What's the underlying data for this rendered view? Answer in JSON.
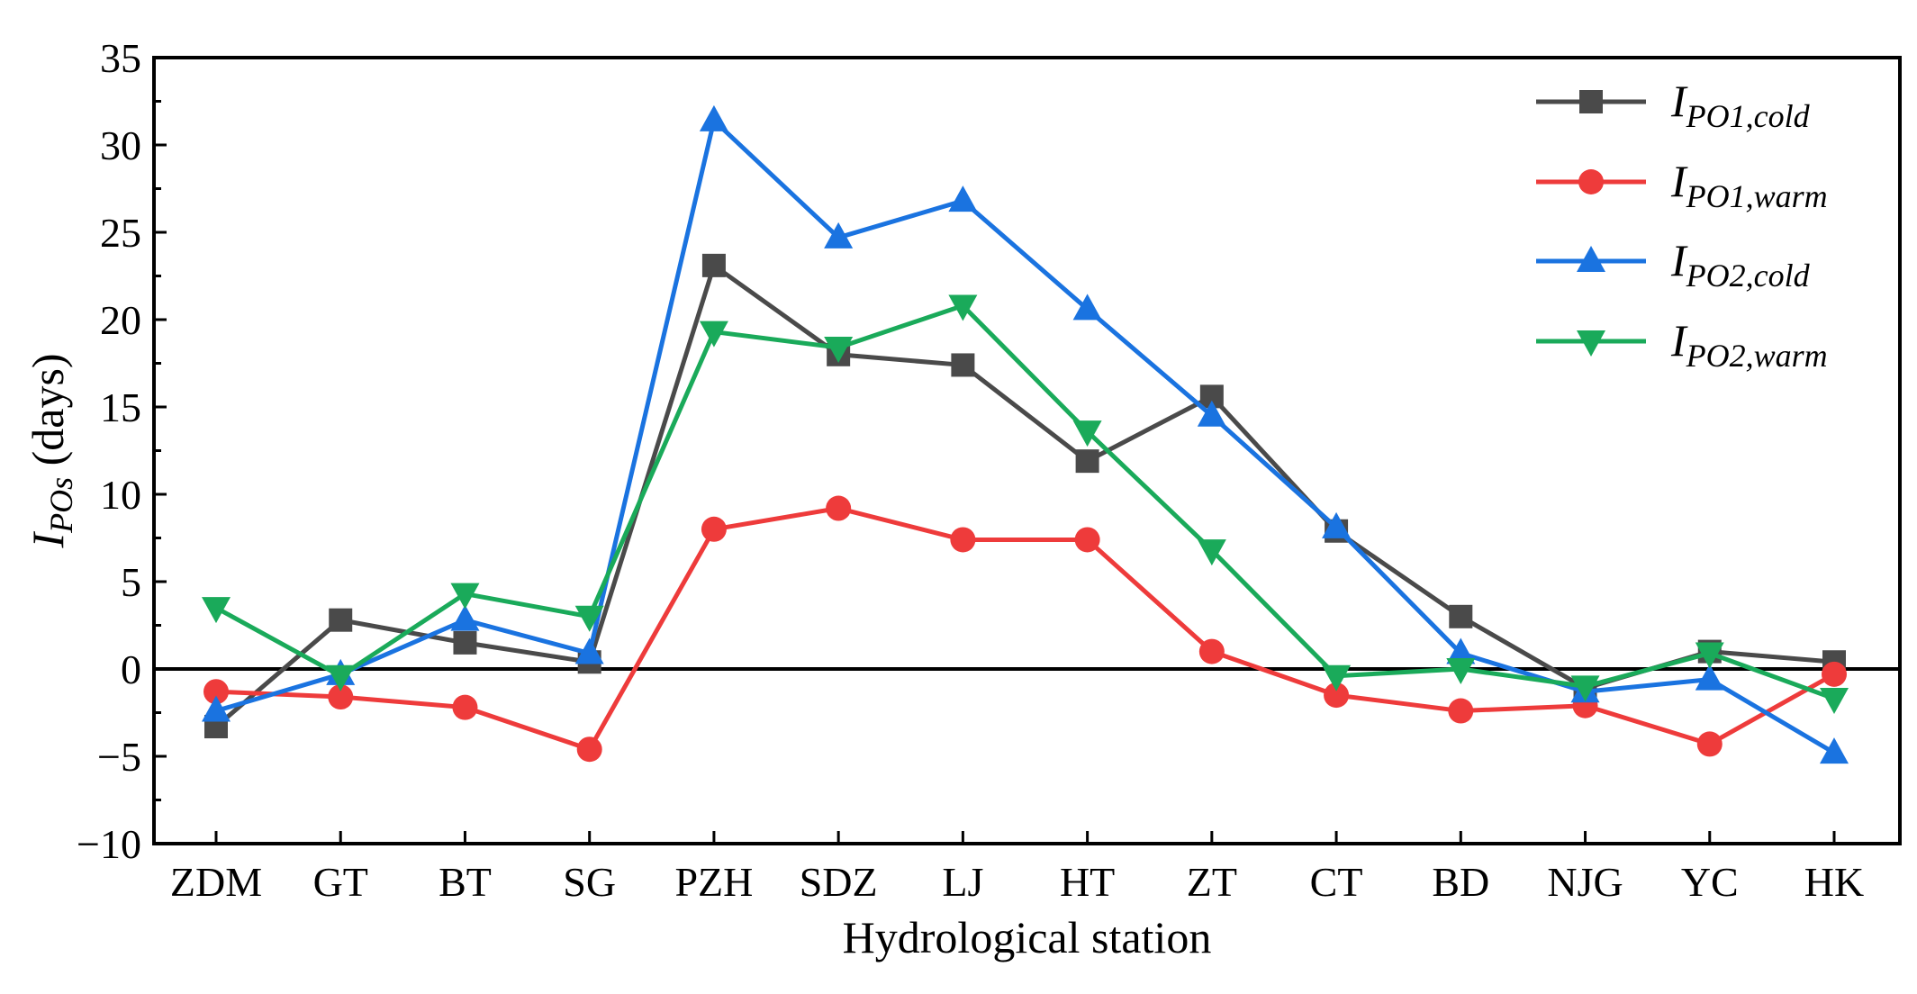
{
  "chart_data": {
    "type": "line",
    "title": "",
    "xlabel": "Hydrological station",
    "ylabel": {
      "main": "I",
      "sub": "POs",
      "unit": " (days)"
    },
    "categories": [
      "ZDM",
      "GT",
      "BT",
      "SG",
      "PZH",
      "SDZ",
      "LJ",
      "HT",
      "ZT",
      "CT",
      "BD",
      "NJG",
      "YC",
      "HK"
    ],
    "ylim": [
      -10,
      35
    ],
    "yticks": [
      -10,
      -5,
      0,
      5,
      10,
      15,
      20,
      25,
      30,
      35
    ],
    "ytick_labels": [
      "−10",
      "−5",
      "0",
      "5",
      "10",
      "15",
      "20",
      "25",
      "30",
      "35"
    ],
    "zero_line": true,
    "legend_position": "top-right",
    "series": [
      {
        "name": "I_PO1,cold",
        "label_main": "I",
        "label_sub": "PO1,cold",
        "color": "#4a4a4a",
        "marker": "square",
        "values": [
          -3.3,
          2.8,
          1.5,
          0.4,
          23.1,
          18.0,
          17.4,
          11.9,
          15.6,
          7.9,
          3.0,
          -1.1,
          1.0,
          0.4
        ]
      },
      {
        "name": "I_PO1,warm",
        "label_main": "I",
        "label_sub": "PO1,warm",
        "color": "#ee3b3b",
        "marker": "circle",
        "values": [
          -1.3,
          -1.6,
          -2.2,
          -4.6,
          8.0,
          9.2,
          7.4,
          7.4,
          1.0,
          -1.5,
          -2.4,
          -2.1,
          -4.3,
          -0.3
        ]
      },
      {
        "name": "I_PO2,cold",
        "label_main": "I",
        "label_sub": "PO2,cold",
        "color": "#1a73e0",
        "marker": "triangle-up",
        "values": [
          -2.4,
          -0.3,
          2.8,
          0.9,
          31.4,
          24.7,
          26.8,
          20.6,
          14.5,
          8.1,
          0.9,
          -1.3,
          -0.6,
          -4.8
        ]
      },
      {
        "name": "I_PO2,warm",
        "label_main": "I",
        "label_sub": "PO2,warm",
        "color": "#1aaa5a",
        "marker": "triangle-down",
        "values": [
          3.5,
          -0.4,
          4.3,
          3.0,
          19.3,
          18.4,
          20.8,
          13.6,
          6.8,
          -0.4,
          0.0,
          -1.0,
          0.9,
          -1.7
        ]
      }
    ]
  }
}
